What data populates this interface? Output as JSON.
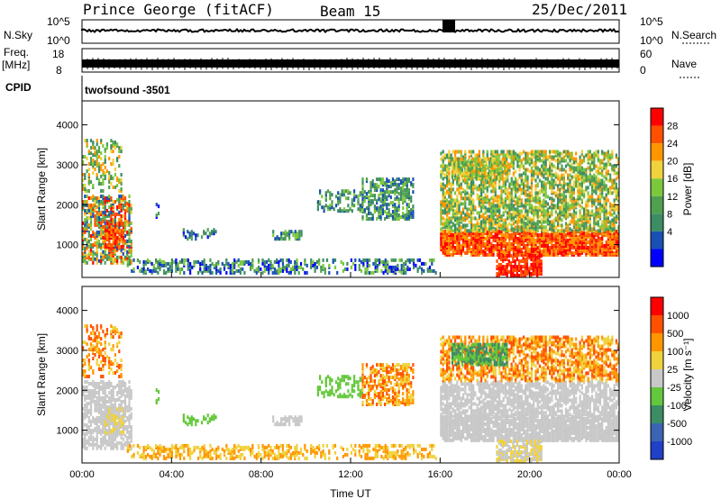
{
  "header": {
    "station": "Prince George (fitACF)",
    "beam": "Beam 15",
    "date": "25/Dec/2011"
  },
  "noise_panel": {
    "left_label": "N.Sky",
    "right_label": "N.Search",
    "left_ticks": [
      "10^5",
      "10^0"
    ],
    "right_ticks": [
      "10^5",
      "10^0"
    ]
  },
  "freq_panel": {
    "left_label_1": "Freq.",
    "left_label_2": "[MHz]",
    "left_ticks": [
      "18",
      "8"
    ],
    "right_label": "Nave",
    "right_ticks": [
      "60",
      "0"
    ]
  },
  "cpid_panel": {
    "label": "CPID",
    "value": "twofsound -3501"
  },
  "colors": {
    "power_scale": [
      "#0000ff",
      "#1a50b4",
      "#3c8c64",
      "#50a050",
      "#7cc83c",
      "#f0d23c",
      "#ff9600",
      "#ff5000",
      "#ff0000"
    ],
    "velocity_scale": [
      "#2040c8",
      "#3c64b4",
      "#3c8c64",
      "#64c83c",
      "#c8c8c8",
      "#f0d23c",
      "#ff9600",
      "#ff5000",
      "#ff0000"
    ]
  },
  "chart_data": [
    {
      "type": "heatmap",
      "name": "power",
      "xlabel": "",
      "ylabel": "Slant Range [km]",
      "xlim": [
        0,
        24
      ],
      "ylim": [
        180,
        4600
      ],
      "y_ticks": [
        "1000",
        "2000",
        "3000",
        "4000"
      ],
      "y_tick_values": [
        1000,
        2000,
        3000,
        4000
      ],
      "colorbar_label": "Power [dB]",
      "colorbar_ticks": [
        "4",
        "8",
        "12",
        "16",
        "20",
        "24",
        "28"
      ],
      "colorbar_range": [
        0,
        30
      ]
    },
    {
      "type": "heatmap",
      "name": "velocity",
      "xlabel": "Time UT",
      "ylabel": "Slant Range [km]",
      "xlim": [
        0,
        24
      ],
      "ylim": [
        180,
        4600
      ],
      "x_ticks": [
        "00:00",
        "04:00",
        "08:00",
        "12:00",
        "16:00",
        "20:00",
        "00:00"
      ],
      "x_tick_values": [
        0,
        4,
        8,
        12,
        16,
        20,
        24
      ],
      "y_ticks": [
        "1000",
        "2000",
        "3000",
        "4000"
      ],
      "y_tick_values": [
        1000,
        2000,
        3000,
        4000
      ],
      "colorbar_label": "Velocity [m s⁻¹]",
      "colorbar_ticks": [
        "1000",
        "500",
        "100",
        "25",
        "-25",
        "-100",
        "-500",
        "-1000"
      ]
    }
  ]
}
